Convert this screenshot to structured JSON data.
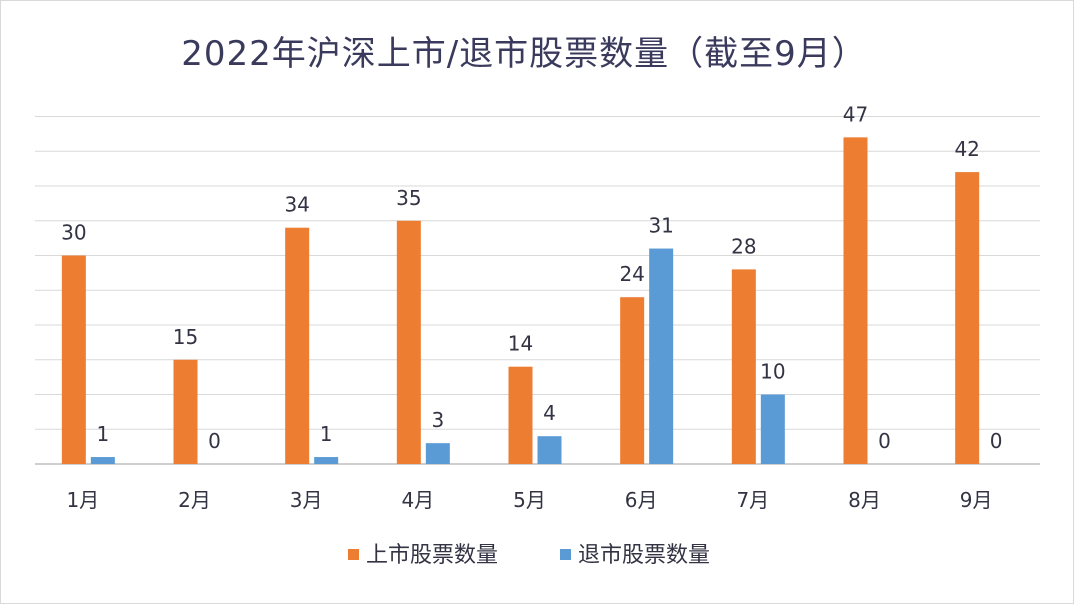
{
  "chart_data": {
    "type": "bar",
    "title": "2022年沪深上市/退市股票数量（截至9月）",
    "categories": [
      "1月",
      "2月",
      "3月",
      "4月",
      "5月",
      "6月",
      "7月",
      "8月",
      "9月"
    ],
    "series": [
      {
        "name": "上市股票数量",
        "color": "#ed7d31",
        "values": [
          30,
          15,
          34,
          35,
          14,
          24,
          28,
          47,
          42
        ]
      },
      {
        "name": "退市股票数量",
        "color": "#5b9bd5",
        "values": [
          1,
          0,
          1,
          3,
          4,
          31,
          10,
          0,
          0
        ]
      }
    ],
    "ylim": [
      0,
      50
    ],
    "y_axis_visible": false,
    "grid": true,
    "legend": "bottom",
    "data_labels": true
  }
}
